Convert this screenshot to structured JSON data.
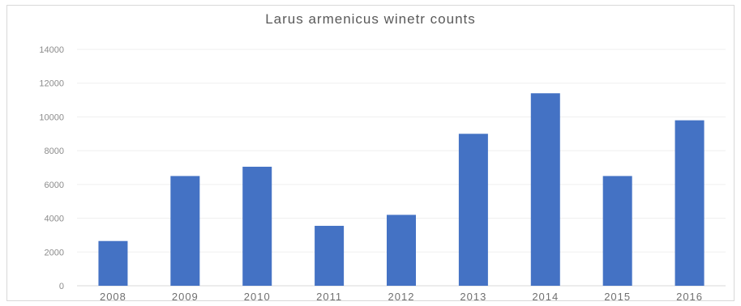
{
  "chart_data": {
    "type": "bar",
    "title": "Larus armenicus winetr counts",
    "categories": [
      "2008",
      "2009",
      "2010",
      "2011",
      "2012",
      "2013",
      "2014",
      "2015",
      "2016"
    ],
    "values": [
      2650,
      6500,
      7050,
      3550,
      4200,
      9000,
      11400,
      6500,
      9800
    ],
    "ylim": [
      0,
      14000
    ],
    "yticks": [
      "0",
      "2000",
      "4000",
      "6000",
      "8000",
      "10000",
      "12000",
      "14000"
    ],
    "grid": true,
    "legend": "none",
    "bar_color": "#4472c4",
    "grid_color": "#efefef"
  }
}
